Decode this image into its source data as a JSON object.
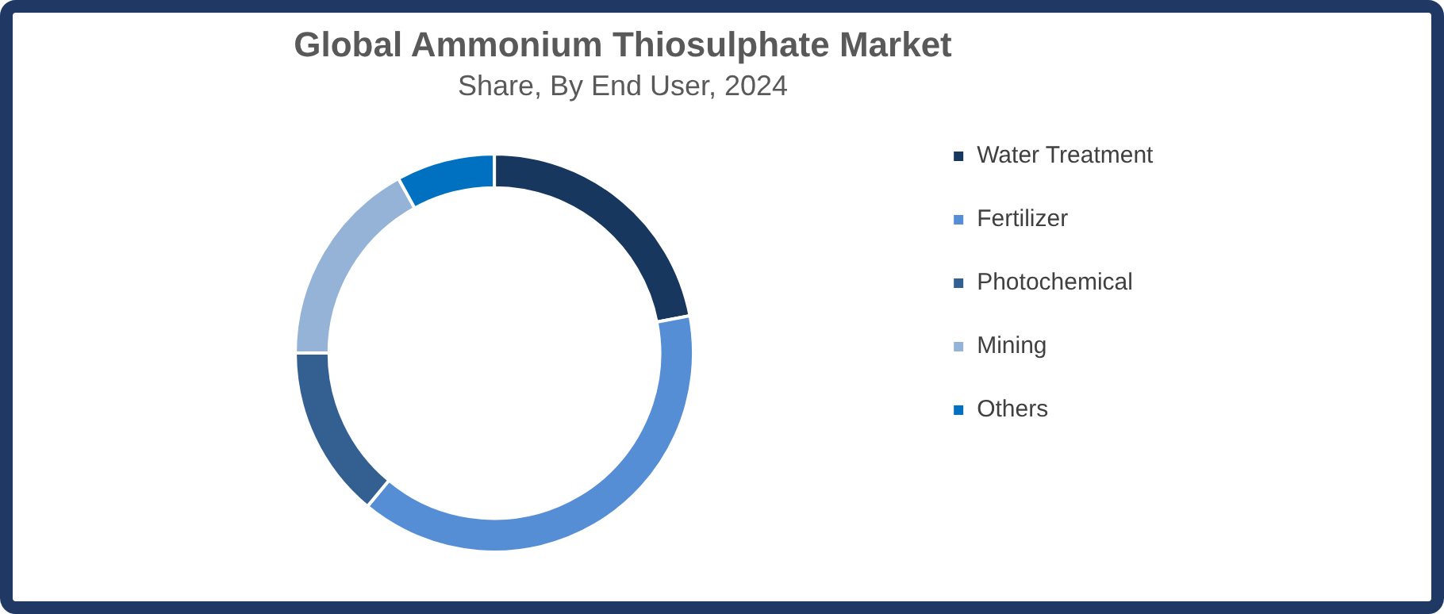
{
  "chart_data": {
    "type": "donut",
    "title": "Global Ammonium Thiosulphate Market",
    "subtitle": "Share, By End User, 2024",
    "categories": [
      "Water Treatment",
      "Fertilizer",
      "Photochemical",
      "Mining",
      "Others"
    ],
    "values": [
      22,
      39,
      14,
      17,
      8
    ],
    "colors": [
      "#17375e",
      "#558ed5",
      "#335f91",
      "#95b3d7",
      "#0070c0"
    ],
    "legend": "right"
  }
}
